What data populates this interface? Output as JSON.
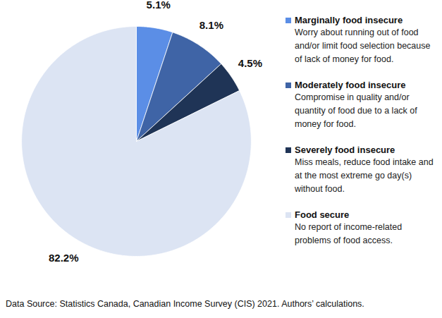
{
  "chart_data": {
    "type": "pie",
    "categories": [
      "Marginally food insecure",
      "Moderately food insecure",
      "Severely food insecure",
      "Food secure"
    ],
    "descriptions": [
      "Worry about running out of food and/or limit food selection because of lack of money for food.",
      "Compromise in quality and/or quantity of food due to a lack of money for food.",
      "Miss meals, reduce food intake and at the most extreme go day(s) without food.",
      "No report of income-related problems of food access."
    ],
    "values": [
      5.1,
      8.1,
      4.5,
      82.2
    ],
    "value_labels": [
      "5.1%",
      "8.1%",
      "4.5%",
      "82.2%"
    ],
    "colors": [
      "#5b8ee6",
      "#3f64a6",
      "#1f3456",
      "#dce4f3"
    ],
    "data_labels": true,
    "legend": "right",
    "caption": "Data Source: Statistics Canada, Canadian Income Survey (CIS) 2021. Authors’ calculations."
  }
}
